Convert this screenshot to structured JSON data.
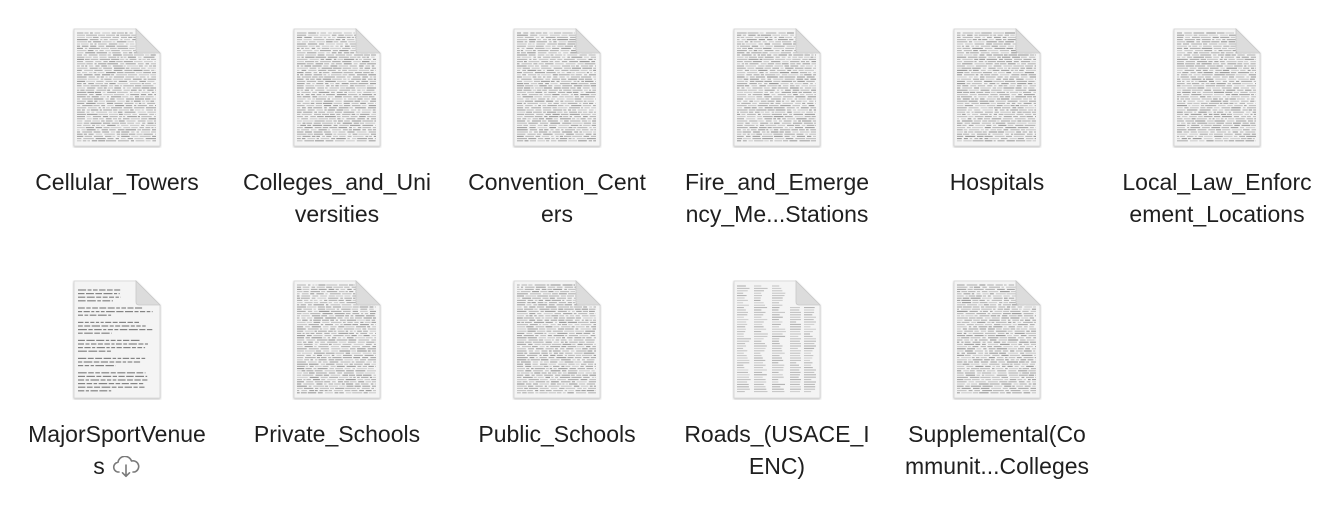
{
  "files": [
    {
      "line1": "Cellular_Towers",
      "line2": "",
      "style": "dense"
    },
    {
      "line1": "Colleges_and_Uni",
      "line2": "versities",
      "style": "dense"
    },
    {
      "line1": "Convention_Cent",
      "line2": "ers",
      "style": "dense"
    },
    {
      "line1": "Fire_and_Emerge",
      "line2": "ncy_Me...Stations",
      "style": "dense"
    },
    {
      "line1": "Hospitals",
      "line2": "",
      "style": "dense"
    },
    {
      "line1": "Local_Law_Enforc",
      "line2": "ement_Locations",
      "style": "dense"
    },
    {
      "line1": "MajorSportVenue",
      "line2": "s",
      "style": "text",
      "cloud": true
    },
    {
      "line1": "Private_Schools",
      "line2": "",
      "style": "dense"
    },
    {
      "line1": "Public_Schools",
      "line2": "",
      "style": "dense"
    },
    {
      "line1": "Roads_(USACE_I",
      "line2": "ENC)",
      "style": "table"
    },
    {
      "line1": "Supplemental(Co",
      "line2": "mmunit...Colleges",
      "style": "dense"
    }
  ],
  "colors": {
    "text": "#1f1f1f",
    "page": "#f4f4f4",
    "fold": "#dcdcdc",
    "ink": "#8a8a8a",
    "cloud": "#7a7a7a"
  }
}
